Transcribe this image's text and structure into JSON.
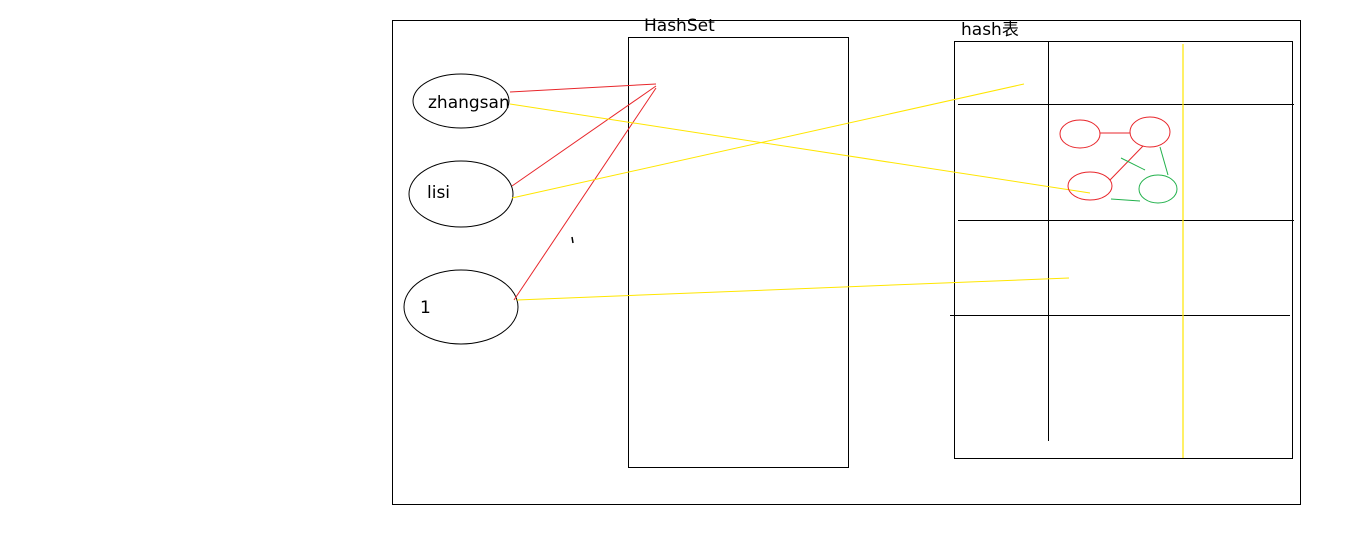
{
  "diagram": {
    "labels": {
      "hashset": "HashSet",
      "hash_table": "hash表"
    },
    "elements": [
      {
        "text": "zhangsan"
      },
      {
        "text": "lisi"
      },
      {
        "text": "1"
      }
    ],
    "colors": {
      "outline": "#000000",
      "red": "#e8262b",
      "yellow": "#ffe600",
      "green": "#22b14c"
    }
  }
}
